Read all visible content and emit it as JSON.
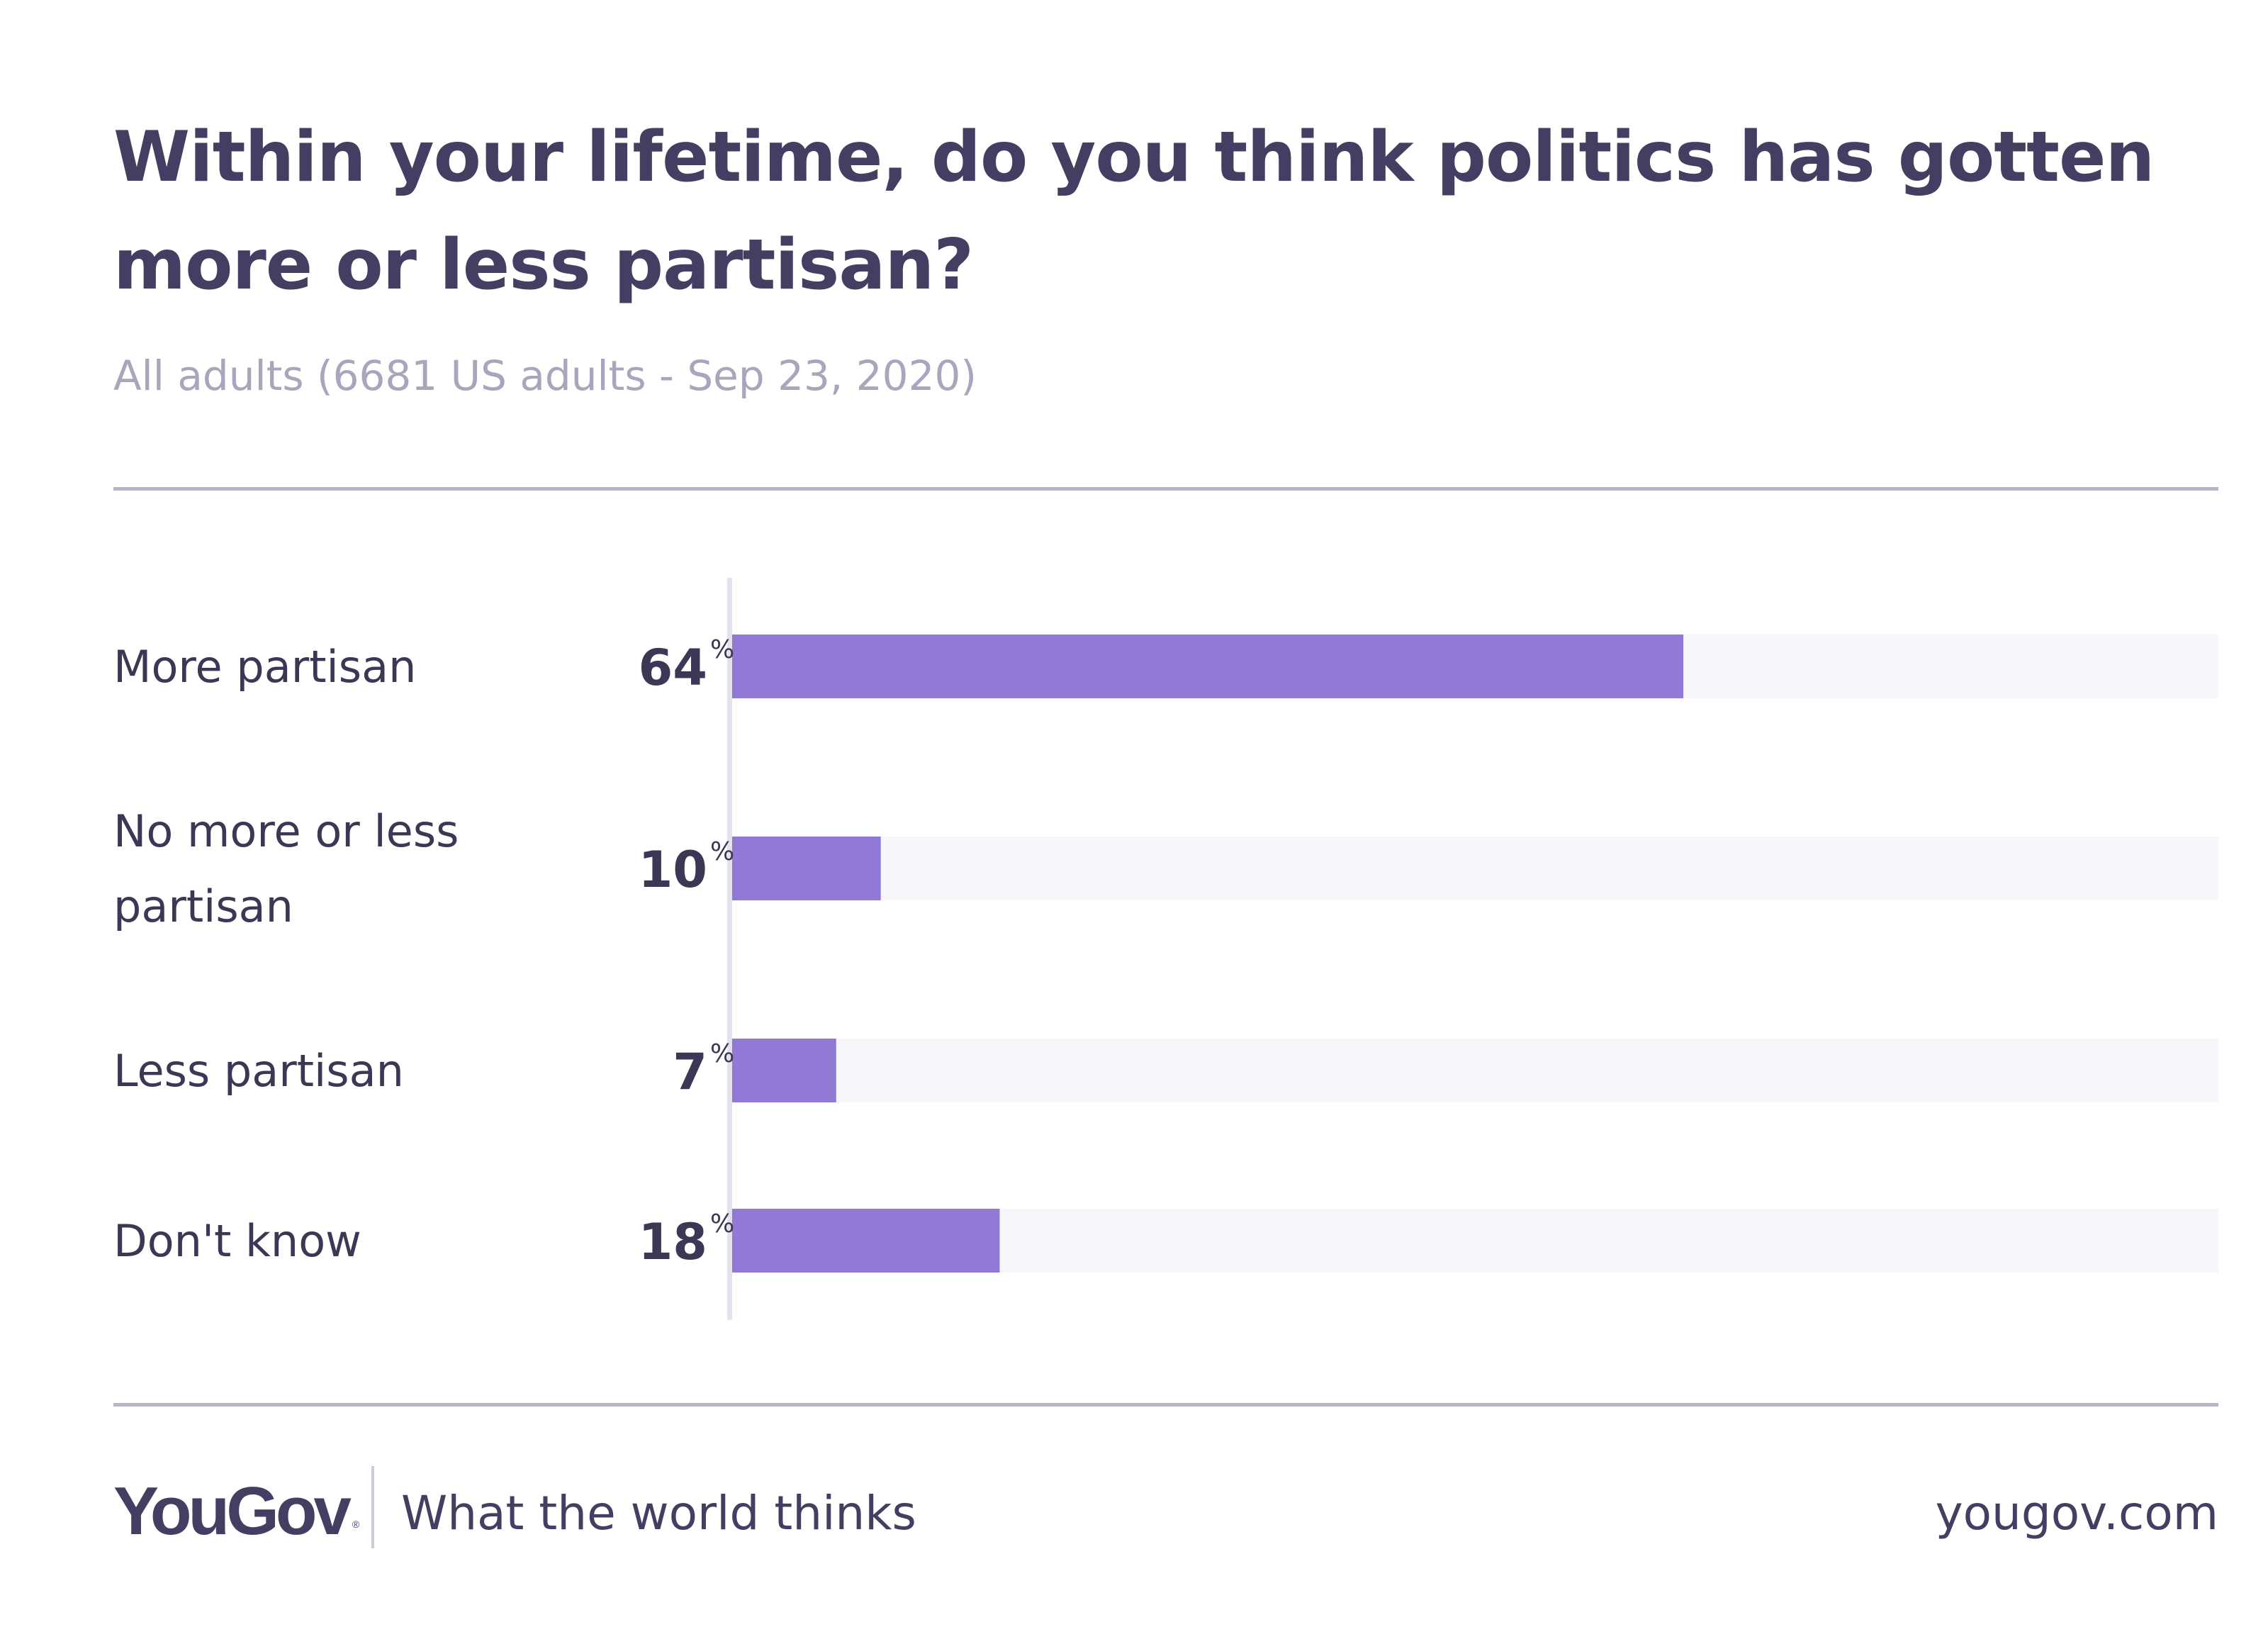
{
  "header": {
    "title": "Within your lifetime, do you think politics has gotten more or less partisan?",
    "subtitle": "All adults (6681 US adults - Sep 23, 2020)"
  },
  "chart_data": {
    "type": "bar",
    "orientation": "horizontal",
    "categories": [
      [
        "More partisan"
      ],
      [
        "No more or less",
        "partisan"
      ],
      [
        "Less partisan"
      ],
      [
        "Don't know"
      ]
    ],
    "values": [
      64,
      10,
      7,
      18
    ],
    "unit": "%",
    "xlim": [
      0,
      100
    ],
    "grid": false,
    "colors": {
      "bar": "#9179d6",
      "track": "#f7f7fb",
      "axis": "#e4e2ec"
    }
  },
  "footer": {
    "brand": "YouGov",
    "tagline": "What the world thinks",
    "url": "yougov.com"
  },
  "icons": {
    "brand_mark": "registered-mark-icon"
  }
}
